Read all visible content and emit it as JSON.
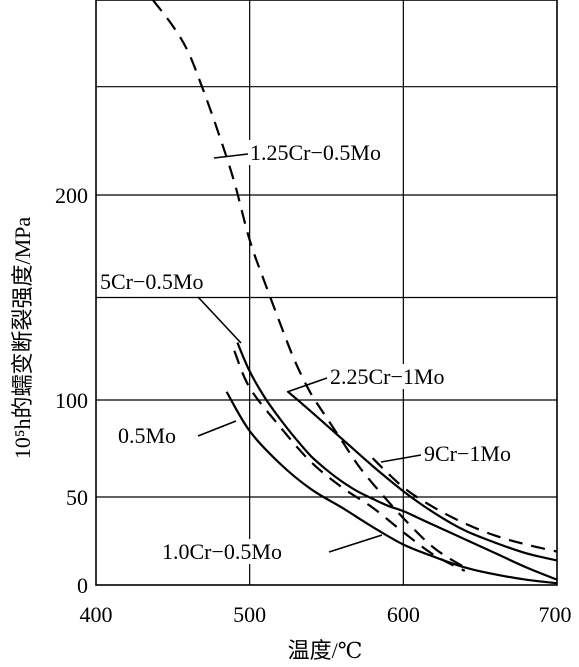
{
  "chart_data": {
    "type": "line",
    "xlabel": "温度/℃",
    "ylabel": "10⁵h的蠕变断裂强度/MPa",
    "x_ticks": [
      "400",
      "500",
      "600",
      "700"
    ],
    "y_ticks": [
      "0",
      "50",
      "100",
      "200"
    ],
    "xlim": [
      400,
      700
    ],
    "ylim": [
      0,
      290
    ],
    "grid": true,
    "y_scale": "nonlinear (ticks at 0, 50, 100, 200; uneven spacing)",
    "series": [
      {
        "name": "1.25Cr−0.5Mo",
        "style": "dashed",
        "x": [
          437,
          450,
          460,
          470,
          480,
          490,
          500,
          510,
          520,
          530,
          540,
          550,
          560,
          570,
          580,
          600,
          620,
          640
        ],
        "y": [
          290,
          278,
          266,
          248,
          228,
          206,
          178,
          157,
          137,
          118,
          103,
          91,
          79,
          67,
          57,
          38,
          21,
          10
        ]
      },
      {
        "name": "5Cr−0.5Mo",
        "style": "solid",
        "x": [
          492,
          500,
          510,
          520,
          530,
          540,
          550,
          560,
          570,
          580,
          590,
          600,
          610,
          620,
          640,
          660,
          680,
          700
        ],
        "y": [
          128,
          114,
          101,
          90,
          80,
          71,
          64,
          58,
          53,
          49,
          45,
          42,
          38,
          34,
          26,
          18,
          10,
          3
        ]
      },
      {
        "name": "2.25Cr−1Mo",
        "style": "solid",
        "x": [
          525,
          540,
          560,
          580,
          600,
          620,
          640,
          660,
          680,
          700
        ],
        "y": [
          104,
          94,
          80,
          66,
          53,
          41,
          31,
          24,
          18,
          14
        ]
      },
      {
        "name": "9Cr−1Mo",
        "style": "dashed",
        "x": [
          580,
          600,
          620,
          640,
          660,
          680,
          700
        ],
        "y": [
          70,
          55,
          44,
          35,
          28,
          23,
          19
        ]
      },
      {
        "name": "0.5Mo",
        "style": "solid",
        "x": [
          485,
          500,
          520,
          540,
          560,
          580,
          600,
          620,
          640,
          660,
          680,
          700
        ],
        "y": [
          104,
          84,
          67,
          54,
          44,
          33,
          23,
          16,
          10,
          6,
          3,
          1
        ]
      },
      {
        "name": "1.0Cr−0.5Mo",
        "style": "dashed",
        "x": [
          490,
          500,
          520,
          540,
          560,
          580,
          600,
          620,
          640
        ],
        "y": [
          124,
          106,
          86,
          68,
          55,
          44,
          30,
          17,
          8
        ]
      }
    ],
    "annotations": [
      {
        "text": "1.25Cr−0.5Mo",
        "target_series": "1.25Cr−0.5Mo"
      },
      {
        "text": "5Cr−0.5Mo",
        "target_series": "5Cr−0.5Mo"
      },
      {
        "text": "2.25Cr−1Mo",
        "target_series": "2.25Cr−1Mo"
      },
      {
        "text": "9Cr−1Mo",
        "target_series": "9Cr−1Mo"
      },
      {
        "text": "0.5Mo",
        "target_series": "0.5Mo"
      },
      {
        "text": "1.0Cr−0.5Mo",
        "target_series": "1.0Cr−0.5Mo"
      }
    ]
  }
}
